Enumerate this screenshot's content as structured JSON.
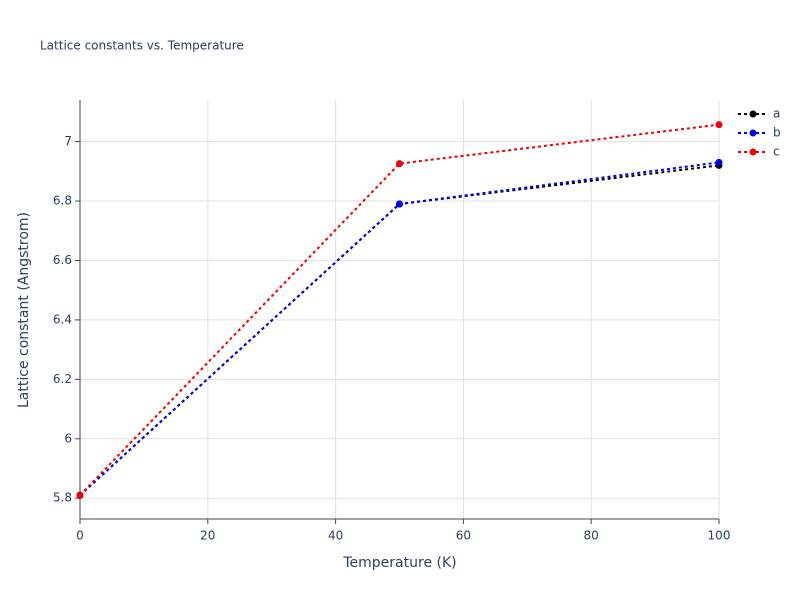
{
  "chart_data": {
    "type": "line",
    "title": "Lattice constants vs. Temperature",
    "x_label": "Temperature (K)",
    "y_label": "Lattice constant (Angstrom)",
    "x": [
      0,
      50,
      100
    ],
    "series": [
      {
        "name": "a",
        "color": "#000000",
        "values": [
          5.81,
          6.79,
          6.92
        ]
      },
      {
        "name": "b",
        "color": "#0000ee",
        "values": [
          5.81,
          6.79,
          6.93
        ]
      },
      {
        "name": "c",
        "color": "#ee0000",
        "values": [
          5.81,
          6.926,
          7.057
        ]
      }
    ],
    "xlim": [
      0,
      100
    ],
    "xticks": [
      0,
      20,
      40,
      60,
      80,
      100
    ],
    "ylim": [
      5.73,
      7.14
    ],
    "yticks": [
      5.8,
      6,
      6.2,
      6.4,
      6.6,
      6.8,
      7
    ],
    "grid": true,
    "legend": "top-right"
  }
}
